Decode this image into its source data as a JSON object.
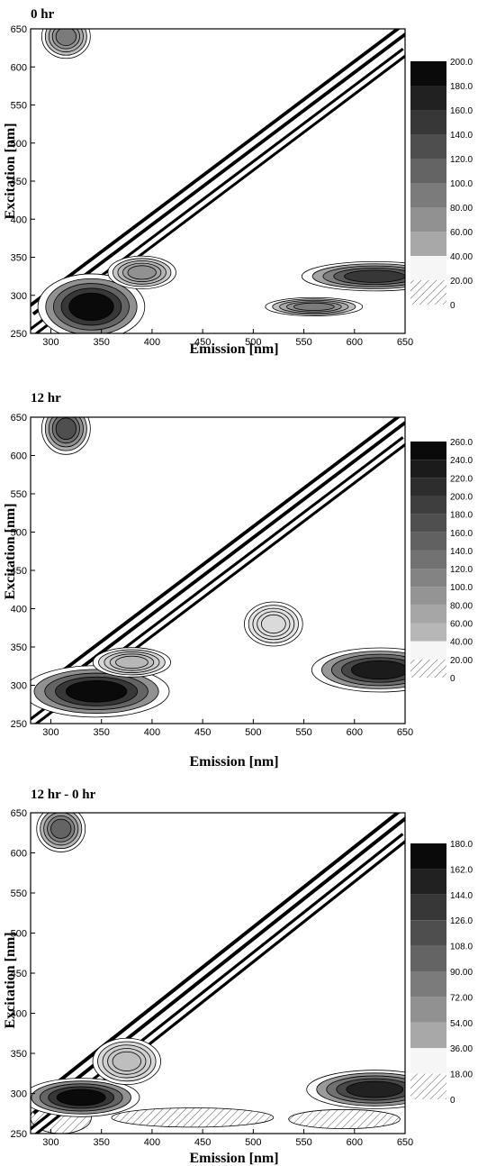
{
  "chart_data": [
    {
      "type": "heatmap",
      "title": "0 hr",
      "xlabel": "Emission [nm]",
      "ylabel": "Excitation [nm]",
      "xlim": [
        280,
        650
      ],
      "ylim": [
        250,
        650
      ],
      "x_ticks": [
        300,
        350,
        400,
        450,
        500,
        550,
        600,
        650
      ],
      "y_ticks": [
        250,
        300,
        350,
        400,
        450,
        500,
        550,
        600,
        650
      ],
      "colorbar_levels": [
        "200.0",
        "180.0",
        "160.0",
        "140.0",
        "120.0",
        "100.0",
        "80.00",
        "60.00",
        "40.00",
        "20.00",
        "0"
      ],
      "scatter_bands": [
        {
          "offset": 0,
          "width": 10,
          "level": 200
        },
        {
          "offset": -30,
          "width": 8,
          "level": 200
        }
      ],
      "peaks": [
        {
          "x": 340,
          "y": 285,
          "rx": 22,
          "ry": 18,
          "level": 200
        },
        {
          "x": 390,
          "y": 330,
          "rx": 14,
          "ry": 9,
          "level": 80
        },
        {
          "x": 315,
          "y": 640,
          "rx": 10,
          "ry": 12,
          "level": 100
        },
        {
          "x": 620,
          "y": 325,
          "rx": 30,
          "ry": 8,
          "level": 160
        },
        {
          "x": 560,
          "y": 285,
          "rx": 20,
          "ry": 5,
          "level": 100
        }
      ],
      "negative_regions": []
    },
    {
      "type": "heatmap",
      "title": "12  hr",
      "xlabel": "Emission [nm]",
      "ylabel": "Excitation [nm]",
      "xlim": [
        280,
        650
      ],
      "ylim": [
        250,
        650
      ],
      "x_ticks": [
        300,
        350,
        400,
        450,
        500,
        550,
        600,
        650
      ],
      "y_ticks": [
        250,
        300,
        350,
        400,
        450,
        500,
        550,
        600,
        650
      ],
      "colorbar_levels": [
        "260.0",
        "240.0",
        "220.0",
        "200.0",
        "180.0",
        "160.0",
        "140.0",
        "120.0",
        "100.0",
        "80.00",
        "60.00",
        "40.00",
        "20.00",
        "0"
      ],
      "scatter_bands": [
        {
          "offset": 0,
          "width": 10,
          "level": 260
        },
        {
          "offset": -30,
          "width": 8,
          "level": 260
        }
      ],
      "peaks": [
        {
          "x": 345,
          "y": 292,
          "rx": 30,
          "ry": 14,
          "level": 260
        },
        {
          "x": 380,
          "y": 330,
          "rx": 16,
          "ry": 8,
          "level": 60
        },
        {
          "x": 315,
          "y": 635,
          "rx": 10,
          "ry": 14,
          "level": 180
        },
        {
          "x": 625,
          "y": 320,
          "rx": 28,
          "ry": 12,
          "level": 240
        },
        {
          "x": 520,
          "y": 380,
          "rx": 12,
          "ry": 12,
          "level": 20
        }
      ],
      "negative_regions": []
    },
    {
      "type": "heatmap",
      "title": "12 hr - 0 hr",
      "xlabel": "Emission [nm]",
      "ylabel": "Excitation [nm]",
      "xlim": [
        280,
        650
      ],
      "ylim": [
        250,
        650
      ],
      "x_ticks": [
        300,
        350,
        400,
        450,
        500,
        550,
        600,
        650
      ],
      "y_ticks": [
        250,
        300,
        350,
        400,
        450,
        500,
        550,
        600,
        650
      ],
      "colorbar_levels": [
        "180.0",
        "162.0",
        "144.0",
        "126.0",
        "108.0",
        "90.00",
        "72.00",
        "54.00",
        "36.00",
        "18.00",
        "0"
      ],
      "scatter_bands": [
        {
          "offset": 0,
          "width": 10,
          "level": 180
        },
        {
          "offset": -30,
          "width": 8,
          "level": 180
        }
      ],
      "peaks": [
        {
          "x": 330,
          "y": 295,
          "rx": 24,
          "ry": 10,
          "level": 180
        },
        {
          "x": 620,
          "y": 305,
          "rx": 28,
          "ry": 10,
          "level": 162
        },
        {
          "x": 310,
          "y": 630,
          "rx": 10,
          "ry": 12,
          "level": 108
        },
        {
          "x": 375,
          "y": 340,
          "rx": 14,
          "ry": 12,
          "level": 36
        }
      ],
      "negative_regions": [
        {
          "x": 310,
          "y": 270,
          "rx": 30,
          "ry": 20
        },
        {
          "x": 440,
          "y": 270,
          "rx": 80,
          "ry": 12
        },
        {
          "x": 590,
          "y": 268,
          "rx": 55,
          "ry": 12
        }
      ]
    }
  ]
}
